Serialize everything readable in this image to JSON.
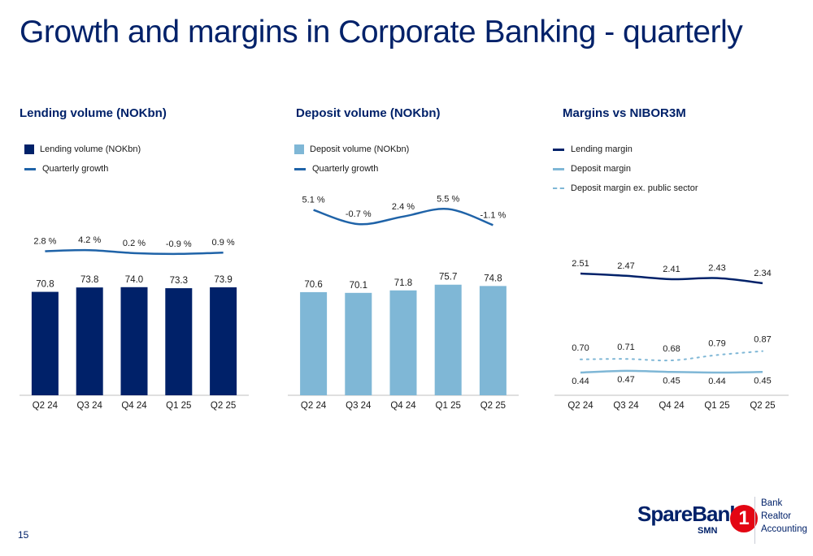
{
  "title": "Growth and margins in Corporate Banking - quarterly",
  "page_number": "15",
  "colors": {
    "navy": "#002169",
    "light_blue": "#7fb7d6",
    "growth_line": "#1f63a8"
  },
  "panels": {
    "lending": {
      "title": "Lending volume (NOKbn)",
      "legend": [
        "Lending volume (NOKbn)",
        "Quarterly growth"
      ]
    },
    "deposit": {
      "title": "Deposit volume (NOKbn)",
      "legend": [
        "Deposit volume (NOKbn)",
        "Quarterly growth"
      ]
    },
    "margins": {
      "title": "Margins vs NIBOR3M",
      "legend": [
        "Lending margin",
        "Deposit margin",
        "Deposit margin ex. public sector"
      ]
    }
  },
  "chart_data": [
    {
      "type": "bar",
      "categories": [
        "Q2 24",
        "Q3 24",
        "Q4 24",
        "Q1 25",
        "Q2 25"
      ],
      "series": [
        {
          "name": "Lending volume (NOKbn)",
          "values": [
            70.8,
            73.8,
            74.0,
            73.3,
            73.9
          ],
          "labels": [
            "70.8",
            "73.8",
            "74.0",
            "73.3",
            "73.9"
          ],
          "color": "#002169"
        },
        {
          "name": "Quarterly growth",
          "type": "line",
          "values": [
            2.8,
            4.2,
            0.2,
            -0.9,
            0.9
          ],
          "labels": [
            "2.8 %",
            "4.2 %",
            "0.2 %",
            "-0.9 %",
            "0.9 %"
          ],
          "color": "#1f63a8"
        }
      ]
    },
    {
      "type": "bar",
      "categories": [
        "Q2 24",
        "Q3 24",
        "Q4 24",
        "Q1 25",
        "Q2 25"
      ],
      "series": [
        {
          "name": "Deposit volume (NOKbn)",
          "values": [
            70.6,
            70.1,
            71.8,
            75.7,
            74.8
          ],
          "labels": [
            "70.6",
            "70.1",
            "71.8",
            "75.7",
            "74.8"
          ],
          "color": "#7fb7d6"
        },
        {
          "name": "Quarterly growth",
          "type": "line",
          "values": [
            5.1,
            -0.7,
            2.4,
            5.5,
            -1.1
          ],
          "labels": [
            "5.1 %",
            "-0.7 %",
            "2.4 %",
            "5.5 %",
            "-1.1 %"
          ],
          "color": "#1f63a8"
        }
      ]
    },
    {
      "type": "line",
      "categories": [
        "Q2 24",
        "Q3 24",
        "Q4 24",
        "Q1 25",
        "Q2 25"
      ],
      "series": [
        {
          "name": "Lending margin",
          "values": [
            2.51,
            2.47,
            2.41,
            2.43,
            2.34
          ],
          "labels": [
            "2.51",
            "2.47",
            "2.41",
            "2.43",
            "2.34"
          ],
          "color": "#002169",
          "style": "solid"
        },
        {
          "name": "Deposit margin",
          "values": [
            0.44,
            0.47,
            0.45,
            0.44,
            0.45
          ],
          "labels": [
            "0.44",
            "0.47",
            "0.45",
            "0.44",
            "0.45"
          ],
          "color": "#7fb7d6",
          "style": "solid"
        },
        {
          "name": "Deposit margin ex. public sector",
          "values": [
            0.7,
            0.71,
            0.68,
            0.79,
            0.87
          ],
          "labels": [
            "0.70",
            "0.71",
            "0.68",
            "0.79",
            "0.87"
          ],
          "color": "#7fb7d6",
          "style": "dotted"
        }
      ]
    }
  ],
  "logo": {
    "wordmark": "SpareBank",
    "circle_text": "1",
    "sub": "SMN",
    "tags": [
      "Bank",
      "Realtor",
      "Accounting"
    ]
  }
}
